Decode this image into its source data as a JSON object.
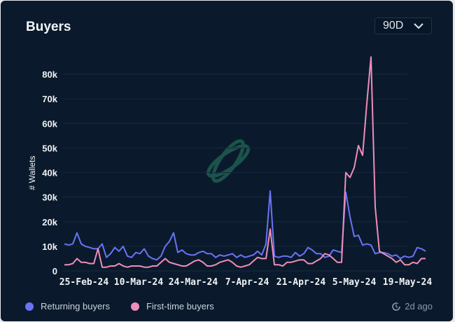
{
  "header": {
    "title": "Buyers",
    "range_selected": "90D"
  },
  "legend": {
    "returning": "Returning buyers",
    "first_time": "First-time buyers"
  },
  "updated": "2d ago",
  "colors": {
    "returning": "#6a73f6",
    "first_time": "#f08dbb",
    "background": "#0a1a2c",
    "watermark": "#1d5a4f"
  },
  "chart_data": {
    "type": "line",
    "title": "Buyers",
    "ylabel": "# Wallets",
    "xlabel": "",
    "ylim": [
      0,
      80000
    ],
    "y_ticks": [
      "0",
      "10k",
      "20k",
      "30k",
      "40k",
      "50k",
      "60k",
      "70k",
      "80k"
    ],
    "x_ticks": [
      "25-Feb-24",
      "10-Mar-24",
      "24-Mar-24",
      "7-Apr-24",
      "21-Apr-24",
      "5-May-24",
      "19-May-24"
    ],
    "grid": true,
    "legend_position": "bottom-left",
    "series": [
      {
        "name": "Returning buyers",
        "values": [
          11000,
          10500,
          11000,
          15500,
          11000,
          10000,
          9500,
          9000,
          9000,
          11000,
          5500,
          7000,
          9500,
          8000,
          10000,
          6000,
          5500,
          7500,
          7000,
          9000,
          6000,
          5000,
          4500,
          6000,
          10000,
          12000,
          15500,
          7500,
          8500,
          7000,
          6500,
          6500,
          7500,
          8000,
          7000,
          7000,
          5500,
          6500,
          6000,
          6500,
          7000,
          5500,
          6500,
          5500,
          6000,
          6500,
          8000,
          6500,
          11000,
          32500,
          6000,
          5500,
          6000,
          6000,
          5500,
          7500,
          6000,
          7000,
          9500,
          8500,
          7000,
          7000,
          5500,
          6000,
          8500,
          8000,
          7500,
          32000,
          22000,
          14000,
          14500,
          10500,
          11000,
          10500,
          7000,
          7500,
          7500,
          7000,
          6000,
          6500,
          5000,
          6000,
          5500,
          6000,
          9500,
          9000,
          8000
        ]
      },
      {
        "name": "First-time buyers",
        "values": [
          2500,
          2500,
          3000,
          5000,
          3500,
          3500,
          3000,
          3000,
          9000,
          1500,
          1500,
          2000,
          2000,
          3000,
          2000,
          1500,
          2000,
          2000,
          2000,
          1500,
          1500,
          2000,
          2000,
          3500,
          5000,
          3500,
          3000,
          2500,
          2000,
          2000,
          3000,
          4000,
          4500,
          3500,
          2000,
          2000,
          2500,
          3500,
          4000,
          4500,
          3500,
          2000,
          1500,
          2000,
          2500,
          4000,
          5500,
          5000,
          5000,
          17000,
          2500,
          2500,
          2000,
          3500,
          3500,
          4000,
          4500,
          4500,
          3000,
          3000,
          4000,
          5000,
          7000,
          6500,
          5000,
          3500,
          3500,
          40000,
          38000,
          42000,
          51000,
          47000,
          68000,
          87000,
          26000,
          8000,
          7000,
          6000,
          5000,
          3500,
          4500,
          2500,
          2500,
          3500,
          3000,
          5000,
          5000
        ]
      }
    ]
  }
}
